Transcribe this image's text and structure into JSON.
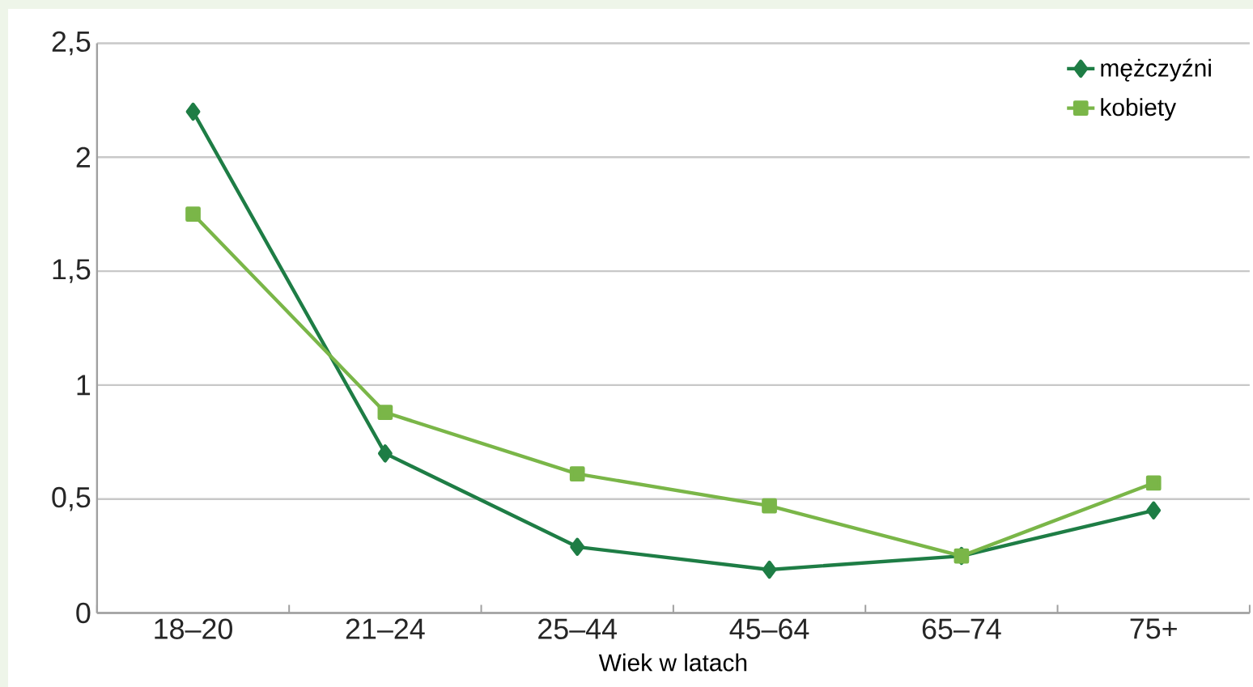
{
  "chart_data": {
    "type": "line",
    "xlabel": "Wiek w latach",
    "categories": [
      "18–20",
      "21–24",
      "25–44",
      "45–64",
      "65–74",
      "75+"
    ],
    "series": [
      {
        "name": "mężczyźni",
        "color": "#1e7d45",
        "marker": "diamond",
        "values": [
          2.2,
          0.7,
          0.29,
          0.19,
          0.25,
          0.45
        ]
      },
      {
        "name": "kobiety",
        "color": "#7ab648",
        "marker": "square",
        "values": [
          1.75,
          0.88,
          0.61,
          0.47,
          0.25,
          0.57
        ]
      }
    ],
    "ylim": [
      0,
      2.5
    ],
    "yticks": [
      0,
      {
        "value": 0.5,
        "label": "0,5"
      },
      1,
      {
        "value": 1.5,
        "label": "1,5"
      },
      2,
      {
        "value": 2.5,
        "label": "2,5"
      }
    ],
    "grid": "y",
    "legend": "top right",
    "line_style": "solid"
  }
}
